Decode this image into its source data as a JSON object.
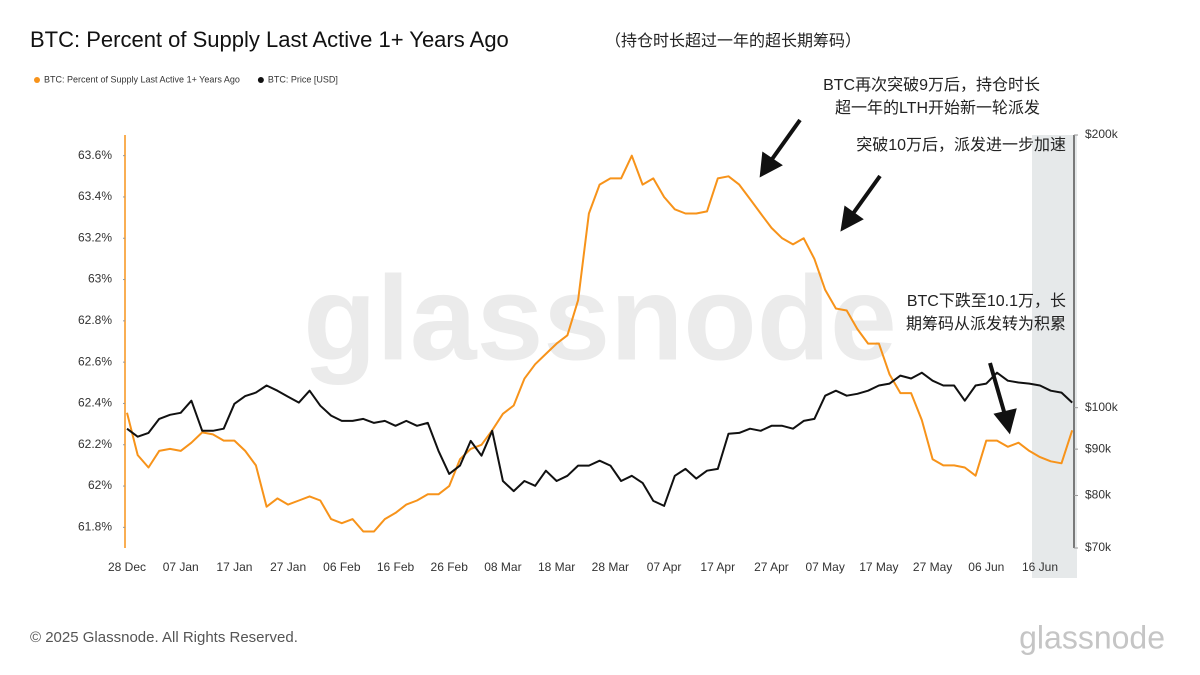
{
  "chart_data": {
    "type": "line",
    "title": "BTC: Percent of Supply Last Active 1+ Years Ago",
    "subtitle": "（持仓时长超过一年的超长期筹码）",
    "categories": [
      "28 Dec",
      null,
      null,
      null,
      null,
      "07 Jan",
      null,
      null,
      null,
      null,
      "17 Jan",
      null,
      null,
      null,
      null,
      "27 Jan",
      null,
      null,
      null,
      null,
      "06 Feb",
      null,
      null,
      null,
      null,
      "16 Feb",
      null,
      null,
      null,
      null,
      "26 Feb",
      null,
      null,
      null,
      null,
      "08 Mar",
      null,
      null,
      null,
      null,
      "18 Mar",
      null,
      null,
      null,
      null,
      "28 Mar",
      null,
      null,
      null,
      null,
      "07 Apr",
      null,
      null,
      null,
      null,
      "17 Apr",
      null,
      null,
      null,
      null,
      "27 Apr",
      null,
      null,
      null,
      null,
      "07 May",
      null,
      null,
      null,
      null,
      "17 May",
      null,
      null,
      null,
      null,
      "27 May",
      null,
      null,
      null,
      null,
      "06 Jun",
      null,
      null,
      null,
      null,
      "16 Jun",
      null,
      null,
      null
    ],
    "series": [
      {
        "name": "BTC: Percent of Supply Last Active 1+ Years Ago",
        "color": "#f7931a",
        "axis": "y",
        "values": [
          62.355,
          62.15,
          62.09,
          62.17,
          62.18,
          62.17,
          62.21,
          62.26,
          62.25,
          62.22,
          62.22,
          62.17,
          62.1,
          61.9,
          61.94,
          61.91,
          61.93,
          61.95,
          61.93,
          61.84,
          61.82,
          61.84,
          61.78,
          61.78,
          61.84,
          61.87,
          61.91,
          61.93,
          61.96,
          61.96,
          62.0,
          62.13,
          62.18,
          62.2,
          62.27,
          62.35,
          62.39,
          62.52,
          62.59,
          62.64,
          62.69,
          62.73,
          62.9,
          63.32,
          63.46,
          63.49,
          63.49,
          63.6,
          63.46,
          63.49,
          63.4,
          63.34,
          63.32,
          63.32,
          63.33,
          63.49,
          63.5,
          63.46,
          63.39,
          63.32,
          63.25,
          63.2,
          63.17,
          63.2,
          63.1,
          62.95,
          62.86,
          62.85,
          62.76,
          62.69,
          62.69,
          62.54,
          62.45,
          62.45,
          62.32,
          62.13,
          62.1,
          62.1,
          62.09,
          62.05,
          62.22,
          62.22,
          62.19,
          62.21,
          62.17,
          62.14,
          62.12,
          62.11,
          62.27
        ]
      },
      {
        "name": "BTC: Price [USD]",
        "color": "#111111",
        "axis": "y2",
        "values": [
          94800,
          92900,
          93800,
          97200,
          98200,
          98700,
          101800,
          94300,
          94300,
          94800,
          101000,
          103000,
          103900,
          105800,
          104400,
          102800,
          101300,
          104400,
          100500,
          98000,
          96700,
          96700,
          97200,
          96200,
          96700,
          95500,
          96700,
          95500,
          96200,
          89600,
          84500,
          86300,
          91900,
          88500,
          94300,
          83000,
          80900,
          83000,
          82000,
          85200,
          83000,
          84100,
          86300,
          86300,
          87400,
          86300,
          83000,
          84100,
          82600,
          78900,
          77900,
          84100,
          85600,
          83500,
          85200,
          85600,
          93600,
          93800,
          94800,
          94300,
          95500,
          95500,
          94800,
          96700,
          97200,
          103100,
          104400,
          103100,
          103600,
          104400,
          105800,
          106300,
          108500,
          107700,
          109300,
          107100,
          105800,
          105800,
          101800,
          105800,
          106300,
          109300,
          107100,
          106600,
          106300,
          105800,
          104400,
          103900,
          101300
        ]
      }
    ],
    "ylim": [
      61.7,
      63.7
    ],
    "yticks": [
      {
        "value": 61.8,
        "label": "61.8%"
      },
      {
        "value": 62,
        "label": "62%"
      },
      {
        "value": 62.2,
        "label": "62.2%"
      },
      {
        "value": 62.4,
        "label": "62.4%"
      },
      {
        "value": 62.6,
        "label": "62.6%"
      },
      {
        "value": 62.8,
        "label": "62.8%"
      },
      {
        "value": 63,
        "label": "63%"
      },
      {
        "value": 63.2,
        "label": "63.2%"
      },
      {
        "value": 63.4,
        "label": "63.4%"
      },
      {
        "value": 63.6,
        "label": "63.6%"
      }
    ],
    "y2lim": [
      70000,
      200000
    ],
    "y2log": true,
    "y2ticks": [
      {
        "value": 70000,
        "label": "$70k"
      },
      {
        "value": 80000,
        "label": "$80k"
      },
      {
        "value": 90000,
        "label": "$90k"
      },
      {
        "value": 100000,
        "label": "$100k"
      },
      {
        "value": 200000,
        "label": "$200k"
      }
    ],
    "grid": false,
    "annotations": [
      [
        "BTC再次突破9万后，持仓时长",
        "超一年的LTH开始新一轮派发"
      ],
      [
        "突破10万后，派发进一步加速"
      ],
      [
        "BTC下跌至10.1万，长",
        "期筹码从派发转为积累"
      ]
    ],
    "watermark": "glassnode",
    "footer": "© 2025 Glassnode. All Rights Reserved.",
    "brand": "glassnode"
  }
}
